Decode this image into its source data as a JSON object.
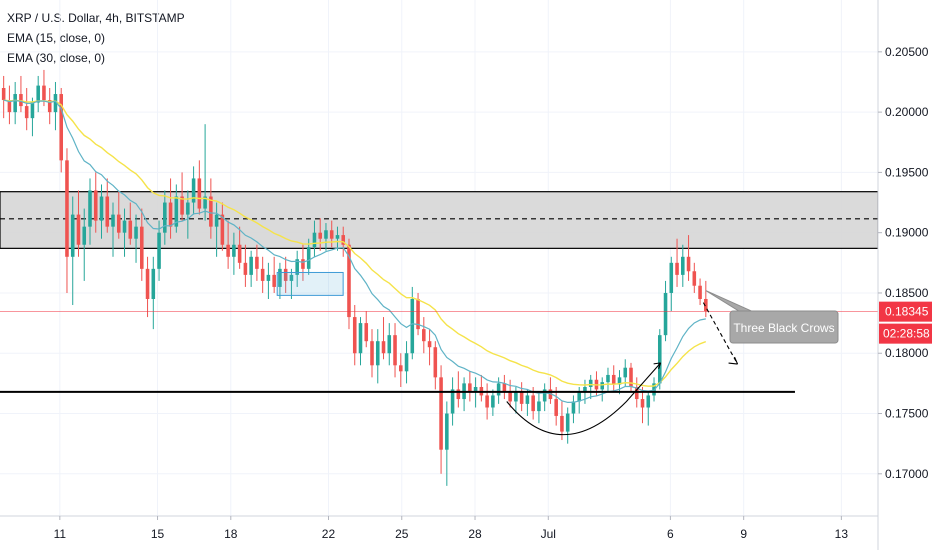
{
  "chart_data": {
    "type": "candlestick",
    "title": "XRP / U.S. Dollar, 4h, BITSTAMP",
    "indicators": [
      {
        "label": "EMA (15, close, 0)",
        "color": "#5fb3c6"
      },
      {
        "label": "EMA (30, close, 0)",
        "color": "#f5e34a"
      }
    ],
    "y_axis": {
      "min": 0.1665,
      "max": 0.2093,
      "ticks": [
        "0.20500",
        "0.20000",
        "0.19500",
        "0.19000",
        "0.18500",
        "0.18000",
        "0.17500",
        "0.17000"
      ],
      "tick_values": [
        0.205,
        0.2,
        0.195,
        0.19,
        0.185,
        0.18,
        0.175,
        0.17
      ]
    },
    "x_axis": {
      "ticks": [
        "11",
        "15",
        "18",
        "22",
        "25",
        "28",
        "Jul",
        "6",
        "9",
        "13"
      ],
      "tick_days": [
        11,
        15,
        18,
        22,
        25,
        28,
        31,
        36,
        39,
        43
      ],
      "day_min": 8.55,
      "day_max": 44.5
    },
    "last_price": {
      "label": "0.18345",
      "value": 0.18345,
      "countdown": "02:28:58",
      "color": "#f23645"
    },
    "resistance_zone": {
      "low": 0.1887,
      "high": 0.1934,
      "mid": 0.19115
    },
    "support_line": {
      "value": 0.1768,
      "from_day": 8.55,
      "to_day": 41.1
    },
    "annotation": {
      "text": "Three Black Crows"
    },
    "colors": {
      "up": "#26a69a",
      "down": "#ef5350",
      "ema_fast": "#5fb3c6",
      "ema_slow": "#f5e34a"
    },
    "candles_4h": [
      [
        0.202,
        0.203,
        0.1995,
        0.201
      ],
      [
        0.201,
        0.2022,
        0.199,
        0.2
      ],
      [
        0.2,
        0.2025,
        0.199,
        0.2015
      ],
      [
        0.2015,
        0.203,
        0.2,
        0.2005
      ],
      [
        0.2005,
        0.202,
        0.1985,
        0.1995
      ],
      [
        0.1995,
        0.2012,
        0.198,
        0.2008
      ],
      [
        0.2008,
        0.203,
        0.2,
        0.2022
      ],
      [
        0.2022,
        0.2035,
        0.2005,
        0.201
      ],
      [
        0.201,
        0.202,
        0.199,
        0.2
      ],
      [
        0.2,
        0.2025,
        0.1985,
        0.2015
      ],
      [
        0.2015,
        0.202,
        0.195,
        0.196
      ],
      [
        0.196,
        0.197,
        0.185,
        0.188
      ],
      [
        0.188,
        0.193,
        0.184,
        0.1915
      ],
      [
        0.1915,
        0.1935,
        0.188,
        0.189
      ],
      [
        0.189,
        0.192,
        0.186,
        0.1905
      ],
      [
        0.1905,
        0.1945,
        0.189,
        0.1935
      ],
      [
        0.1935,
        0.195,
        0.19,
        0.191
      ],
      [
        0.191,
        0.194,
        0.1895,
        0.193
      ],
      [
        0.193,
        0.1945,
        0.19,
        0.1905
      ],
      [
        0.1905,
        0.1925,
        0.188,
        0.1915
      ],
      [
        0.1915,
        0.1935,
        0.1895,
        0.19
      ],
      [
        0.19,
        0.192,
        0.188,
        0.191
      ],
      [
        0.191,
        0.1925,
        0.189,
        0.1895
      ],
      [
        0.1895,
        0.1915,
        0.1875,
        0.1905
      ],
      [
        0.1905,
        0.192,
        0.186,
        0.187
      ],
      [
        0.187,
        0.188,
        0.183,
        0.1845
      ],
      [
        0.1845,
        0.188,
        0.182,
        0.187
      ],
      [
        0.187,
        0.191,
        0.186,
        0.19
      ],
      [
        0.19,
        0.1935,
        0.189,
        0.1925
      ],
      [
        0.1925,
        0.1945,
        0.1895,
        0.1905
      ],
      [
        0.1905,
        0.194,
        0.19,
        0.193
      ],
      [
        0.193,
        0.195,
        0.191,
        0.1915
      ],
      [
        0.1915,
        0.1935,
        0.1895,
        0.1925
      ],
      [
        0.1925,
        0.1955,
        0.1915,
        0.1945
      ],
      [
        0.1945,
        0.196,
        0.1915,
        0.192
      ],
      [
        0.192,
        0.199,
        0.191,
        0.193
      ],
      [
        0.193,
        0.1945,
        0.1895,
        0.1905
      ],
      [
        0.1905,
        0.1925,
        0.188,
        0.1915
      ],
      [
        0.1915,
        0.1925,
        0.1885,
        0.189
      ],
      [
        0.189,
        0.191,
        0.187,
        0.188
      ],
      [
        0.188,
        0.19,
        0.1865,
        0.189
      ],
      [
        0.189,
        0.1905,
        0.187,
        0.1875
      ],
      [
        0.1875,
        0.189,
        0.1855,
        0.1865
      ],
      [
        0.1865,
        0.1885,
        0.1855,
        0.188
      ],
      [
        0.188,
        0.189,
        0.186,
        0.187
      ],
      [
        0.187,
        0.188,
        0.185,
        0.186
      ],
      [
        0.186,
        0.1875,
        0.1845,
        0.1865
      ],
      [
        0.1865,
        0.188,
        0.185,
        0.1855
      ],
      [
        0.1855,
        0.1875,
        0.1845,
        0.187
      ],
      [
        0.187,
        0.188,
        0.185,
        0.186
      ],
      [
        0.186,
        0.187,
        0.1845,
        0.1865
      ],
      [
        0.1865,
        0.1885,
        0.1855,
        0.1878
      ],
      [
        0.1878,
        0.189,
        0.186,
        0.187
      ],
      [
        0.187,
        0.1895,
        0.1865,
        0.1888
      ],
      [
        0.1888,
        0.191,
        0.188,
        0.19
      ],
      [
        0.19,
        0.1912,
        0.1885,
        0.1895
      ],
      [
        0.1895,
        0.1908,
        0.1885,
        0.1902
      ],
      [
        0.1902,
        0.191,
        0.1888,
        0.1895
      ],
      [
        0.1895,
        0.1905,
        0.1885,
        0.1898
      ],
      [
        0.1898,
        0.1905,
        0.188,
        0.189
      ],
      [
        0.189,
        0.1895,
        0.182,
        0.183
      ],
      [
        0.183,
        0.184,
        0.179,
        0.18
      ],
      [
        0.18,
        0.183,
        0.179,
        0.1825
      ],
      [
        0.1825,
        0.1835,
        0.1805,
        0.181
      ],
      [
        0.181,
        0.182,
        0.178,
        0.179
      ],
      [
        0.179,
        0.182,
        0.1775,
        0.181
      ],
      [
        0.181,
        0.183,
        0.1795,
        0.18
      ],
      [
        0.18,
        0.1825,
        0.179,
        0.1815
      ],
      [
        0.1815,
        0.1825,
        0.178,
        0.179
      ],
      [
        0.179,
        0.18,
        0.1772,
        0.1785
      ],
      [
        0.1785,
        0.181,
        0.1775,
        0.18
      ],
      [
        0.18,
        0.1855,
        0.1795,
        0.1845
      ],
      [
        0.1845,
        0.185,
        0.1815,
        0.182
      ],
      [
        0.182,
        0.183,
        0.18,
        0.181
      ],
      [
        0.181,
        0.182,
        0.179,
        0.1805
      ],
      [
        0.1805,
        0.181,
        0.177,
        0.178
      ],
      [
        0.178,
        0.179,
        0.17,
        0.172
      ],
      [
        0.172,
        0.176,
        0.169,
        0.175
      ],
      [
        0.175,
        0.178,
        0.174,
        0.177
      ],
      [
        0.177,
        0.1785,
        0.1755,
        0.1762
      ],
      [
        0.1762,
        0.178,
        0.1752,
        0.1775
      ],
      [
        0.1775,
        0.1785,
        0.176,
        0.1768
      ],
      [
        0.1768,
        0.178,
        0.1755,
        0.1772
      ],
      [
        0.1772,
        0.1782,
        0.176,
        0.1765
      ],
      [
        0.1765,
        0.1775,
        0.1745,
        0.1755
      ],
      [
        0.1755,
        0.177,
        0.1748,
        0.1765
      ],
      [
        0.1765,
        0.178,
        0.1758,
        0.1775
      ],
      [
        0.1775,
        0.1782,
        0.1762,
        0.1768
      ],
      [
        0.1768,
        0.1778,
        0.1755,
        0.176
      ],
      [
        0.176,
        0.1772,
        0.175,
        0.1768
      ],
      [
        0.1768,
        0.1776,
        0.1752,
        0.1758
      ],
      [
        0.1758,
        0.177,
        0.1748,
        0.1765
      ],
      [
        0.1765,
        0.1772,
        0.1745,
        0.1752
      ],
      [
        0.1752,
        0.1768,
        0.1742,
        0.176
      ],
      [
        0.176,
        0.1775,
        0.1752,
        0.177
      ],
      [
        0.177,
        0.178,
        0.1758,
        0.1762
      ],
      [
        0.1762,
        0.1772,
        0.174,
        0.1748
      ],
      [
        0.1748,
        0.176,
        0.1728,
        0.1735
      ],
      [
        0.1735,
        0.1755,
        0.1725,
        0.175
      ],
      [
        0.175,
        0.1765,
        0.1742,
        0.176
      ],
      [
        0.176,
        0.1772,
        0.175,
        0.1768
      ],
      [
        0.1768,
        0.1778,
        0.1758,
        0.1772
      ],
      [
        0.1772,
        0.1782,
        0.1762,
        0.1778
      ],
      [
        0.1778,
        0.1785,
        0.1765,
        0.177
      ],
      [
        0.177,
        0.178,
        0.176,
        0.1776
      ],
      [
        0.1776,
        0.1788,
        0.1768,
        0.1782
      ],
      [
        0.1782,
        0.179,
        0.1768,
        0.1774
      ],
      [
        0.1774,
        0.1786,
        0.1766,
        0.178
      ],
      [
        0.178,
        0.1795,
        0.1772,
        0.1788
      ],
      [
        0.1788,
        0.1792,
        0.1768,
        0.1772
      ],
      [
        0.1772,
        0.178,
        0.1755,
        0.1762
      ],
      [
        0.1762,
        0.1772,
        0.1742,
        0.1755
      ],
      [
        0.1755,
        0.1768,
        0.174,
        0.1765
      ],
      [
        0.1765,
        0.178,
        0.176,
        0.1775
      ],
      [
        0.1775,
        0.182,
        0.177,
        0.1815
      ],
      [
        0.1815,
        0.186,
        0.181,
        0.185
      ],
      [
        0.185,
        0.188,
        0.1835,
        0.1875
      ],
      [
        0.1875,
        0.1895,
        0.1855,
        0.1865
      ],
      [
        0.1865,
        0.189,
        0.1855,
        0.188
      ],
      [
        0.188,
        0.1898,
        0.186,
        0.1868
      ],
      [
        0.1868,
        0.1875,
        0.185,
        0.1856
      ],
      [
        0.1856,
        0.1862,
        0.184,
        0.1845
      ],
      [
        0.1845,
        0.186,
        0.183,
        0.1835
      ]
    ]
  }
}
